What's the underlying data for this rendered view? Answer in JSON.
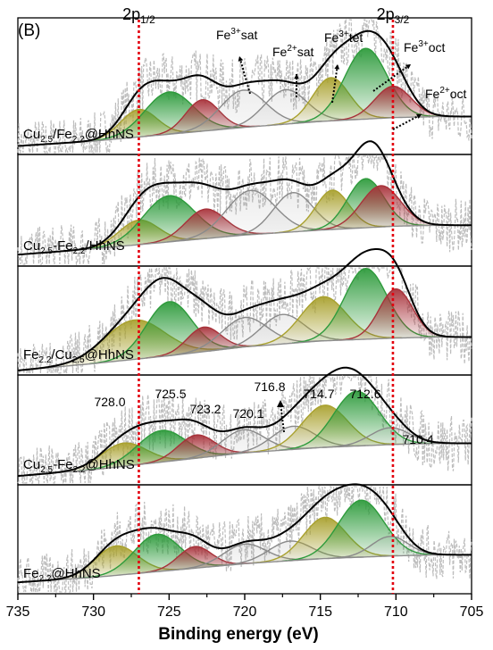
{
  "chart_data": {
    "type": "line",
    "panel_label": "(B)",
    "xlabel": "Binding energy (eV)",
    "xlim": [
      735,
      705
    ],
    "x_ticks": [
      735,
      730,
      725,
      720,
      715,
      710,
      705
    ],
    "x_tick_labels": [
      "735",
      "730",
      "725",
      "720",
      "715",
      "710",
      "705"
    ],
    "reference_lines": [
      {
        "x": 727.0,
        "label_main": "2p",
        "label_sub": "1/2"
      },
      {
        "x": 710.2,
        "label_main": "2p",
        "label_sub": "3/2"
      }
    ],
    "colors": {
      "raw": "#bdbdbd",
      "fit": "#000000",
      "background": "#8c8c8c",
      "green": "#2e9b3c",
      "olive": "#a9a12e",
      "red": "#a8323a",
      "gray_peak": "#8a8a8a",
      "reference": "#e3000f"
    },
    "annotations": [
      {
        "base": "Fe",
        "sup": "3+",
        "suffix": "sat"
      },
      {
        "base": "Fe",
        "sup": "2+",
        "suffix": "sat"
      },
      {
        "base": "Fe",
        "sup": "3+",
        "suffix": "tet"
      },
      {
        "base": "Fe",
        "sup": "3+",
        "suffix": "oct"
      },
      {
        "base": "Fe",
        "sup": "2+",
        "suffix": "oct"
      }
    ],
    "peak_labels": [
      {
        "text": "728.0",
        "x": 728.0
      },
      {
        "text": "725.5",
        "x": 725.5
      },
      {
        "text": "723.2",
        "x": 723.2
      },
      {
        "text": "720.1",
        "x": 720.1
      },
      {
        "text": "716.8",
        "x": 716.8
      },
      {
        "text": "714.7",
        "x": 714.7
      },
      {
        "text": "712.6",
        "x": 712.6
      },
      {
        "text": "710.4",
        "x": 710.4
      }
    ],
    "series": [
      {
        "label_parts": [
          [
            "Cu",
            "n"
          ],
          [
            "2.5",
            "s"
          ],
          [
            "/Fe",
            "n"
          ],
          [
            "2.2",
            "s"
          ],
          [
            "@HhNS",
            "n"
          ]
        ],
        "background": [
          [
            735,
            0.05
          ],
          [
            730,
            0.1
          ],
          [
            725,
            0.17
          ],
          [
            720,
            0.24
          ],
          [
            715,
            0.3
          ],
          [
            710,
            0.34
          ],
          [
            707,
            0.35
          ],
          [
            705,
            0.35
          ]
        ],
        "peaks": [
          {
            "center": 727.0,
            "height": 0.28,
            "width": 1.2,
            "color": "olive"
          },
          {
            "center": 725.0,
            "height": 0.43,
            "width": 1.6,
            "color": "green"
          },
          {
            "center": 722.8,
            "height": 0.32,
            "width": 1.1,
            "color": "red"
          },
          {
            "center": 720.1,
            "height": 0.38,
            "width": 1.5,
            "color": "gray_peak"
          },
          {
            "center": 717.3,
            "height": 0.35,
            "width": 1.4,
            "color": "gray_peak"
          },
          {
            "center": 714.3,
            "height": 0.44,
            "width": 1.2,
            "color": "olive"
          },
          {
            "center": 712.0,
            "height": 0.72,
            "width": 1.4,
            "color": "green"
          },
          {
            "center": 710.2,
            "height": 0.32,
            "width": 1.2,
            "color": "red"
          }
        ]
      },
      {
        "label_parts": [
          [
            "Cu",
            "n"
          ],
          [
            "2.5",
            "s"
          ],
          [
            "-Fe",
            "n"
          ],
          [
            "2.2",
            "s"
          ],
          [
            "/HhNS",
            "n"
          ]
        ],
        "background": [
          [
            735,
            0.08
          ],
          [
            730,
            0.14
          ],
          [
            725,
            0.21
          ],
          [
            720,
            0.28
          ],
          [
            715,
            0.33
          ],
          [
            710,
            0.37
          ],
          [
            707,
            0.38
          ],
          [
            705,
            0.38
          ]
        ],
        "peaks": [
          {
            "center": 727.0,
            "height": 0.25,
            "width": 1.3,
            "color": "olive"
          },
          {
            "center": 725.0,
            "height": 0.47,
            "width": 1.7,
            "color": "green"
          },
          {
            "center": 722.6,
            "height": 0.3,
            "width": 1.3,
            "color": "red"
          },
          {
            "center": 719.6,
            "height": 0.45,
            "width": 1.6,
            "color": "gray_peak"
          },
          {
            "center": 716.8,
            "height": 0.4,
            "width": 1.3,
            "color": "gray_peak"
          },
          {
            "center": 714.2,
            "height": 0.4,
            "width": 1.1,
            "color": "olive"
          },
          {
            "center": 712.0,
            "height": 0.5,
            "width": 1.2,
            "color": "green"
          },
          {
            "center": 711.0,
            "height": 0.42,
            "width": 1.3,
            "color": "red"
          }
        ]
      },
      {
        "label_parts": [
          [
            "Fe",
            "n"
          ],
          [
            "2.2",
            "s"
          ],
          [
            "/Cu",
            "n"
          ],
          [
            "2.5",
            "s"
          ],
          [
            "@HhNS",
            "n"
          ]
        ],
        "background": [
          [
            735,
            0.01
          ],
          [
            730,
            0.08
          ],
          [
            725,
            0.16
          ],
          [
            720,
            0.25
          ],
          [
            715,
            0.31
          ],
          [
            710,
            0.34
          ],
          [
            707,
            0.35
          ],
          [
            705,
            0.35
          ]
        ],
        "peaks": [
          {
            "center": 727.3,
            "height": 0.4,
            "width": 2.0,
            "color": "olive"
          },
          {
            "center": 725.0,
            "height": 0.55,
            "width": 1.5,
            "color": "green"
          },
          {
            "center": 722.7,
            "height": 0.25,
            "width": 1.1,
            "color": "red"
          },
          {
            "center": 720.0,
            "height": 0.3,
            "width": 1.5,
            "color": "gray_peak"
          },
          {
            "center": 717.5,
            "height": 0.3,
            "width": 1.4,
            "color": "gray_peak"
          },
          {
            "center": 714.8,
            "height": 0.45,
            "width": 1.5,
            "color": "olive"
          },
          {
            "center": 712.0,
            "height": 0.72,
            "width": 1.4,
            "color": "green"
          },
          {
            "center": 710.0,
            "height": 0.5,
            "width": 1.1,
            "color": "red"
          }
        ]
      },
      {
        "label_parts": [
          [
            "Cu",
            "n"
          ],
          [
            "2.5",
            "s"
          ],
          [
            "-Fe",
            "n"
          ],
          [
            "2.2",
            "s"
          ],
          [
            "@HhNS",
            "n"
          ]
        ],
        "background": [
          [
            735,
            0.05
          ],
          [
            730,
            0.11
          ],
          [
            725,
            0.19
          ],
          [
            720,
            0.27
          ],
          [
            715,
            0.32
          ],
          [
            710,
            0.35
          ],
          [
            707,
            0.36
          ],
          [
            705,
            0.36
          ]
        ],
        "peaks": [
          {
            "center": 728.0,
            "height": 0.22,
            "width": 1.5,
            "color": "olive"
          },
          {
            "center": 725.5,
            "height": 0.3,
            "width": 1.6,
            "color": "green"
          },
          {
            "center": 723.2,
            "height": 0.22,
            "width": 1.2,
            "color": "red"
          },
          {
            "center": 720.1,
            "height": 0.22,
            "width": 1.4,
            "color": "gray_peak"
          },
          {
            "center": 716.8,
            "height": 0.22,
            "width": 1.4,
            "color": "gray_peak"
          },
          {
            "center": 714.7,
            "height": 0.4,
            "width": 1.5,
            "color": "olive"
          },
          {
            "center": 712.6,
            "height": 0.52,
            "width": 1.5,
            "color": "green"
          },
          {
            "center": 710.4,
            "height": 0.16,
            "width": 1.3,
            "color": "gray_peak"
          }
        ]
      },
      {
        "label_parts": [
          [
            "Fe",
            "n"
          ],
          [
            "2.2",
            "s"
          ],
          [
            "@HhNS",
            "n"
          ]
        ],
        "background": [
          [
            735,
            0.08
          ],
          [
            730,
            0.13
          ],
          [
            725,
            0.2
          ],
          [
            720,
            0.27
          ],
          [
            715,
            0.32
          ],
          [
            710,
            0.35
          ],
          [
            707,
            0.36
          ],
          [
            705,
            0.36
          ]
        ],
        "peaks": [
          {
            "center": 728.5,
            "height": 0.3,
            "width": 1.4,
            "color": "olive"
          },
          {
            "center": 725.8,
            "height": 0.38,
            "width": 1.5,
            "color": "green"
          },
          {
            "center": 723.3,
            "height": 0.22,
            "width": 1.1,
            "color": "red"
          },
          {
            "center": 720.0,
            "height": 0.2,
            "width": 1.4,
            "color": "gray_peak"
          },
          {
            "center": 717.0,
            "height": 0.2,
            "width": 1.4,
            "color": "gray_peak"
          },
          {
            "center": 714.7,
            "height": 0.42,
            "width": 1.4,
            "color": "olive"
          },
          {
            "center": 712.3,
            "height": 0.58,
            "width": 1.5,
            "color": "green"
          },
          {
            "center": 710.4,
            "height": 0.2,
            "width": 1.2,
            "color": "gray_peak"
          }
        ]
      }
    ]
  }
}
